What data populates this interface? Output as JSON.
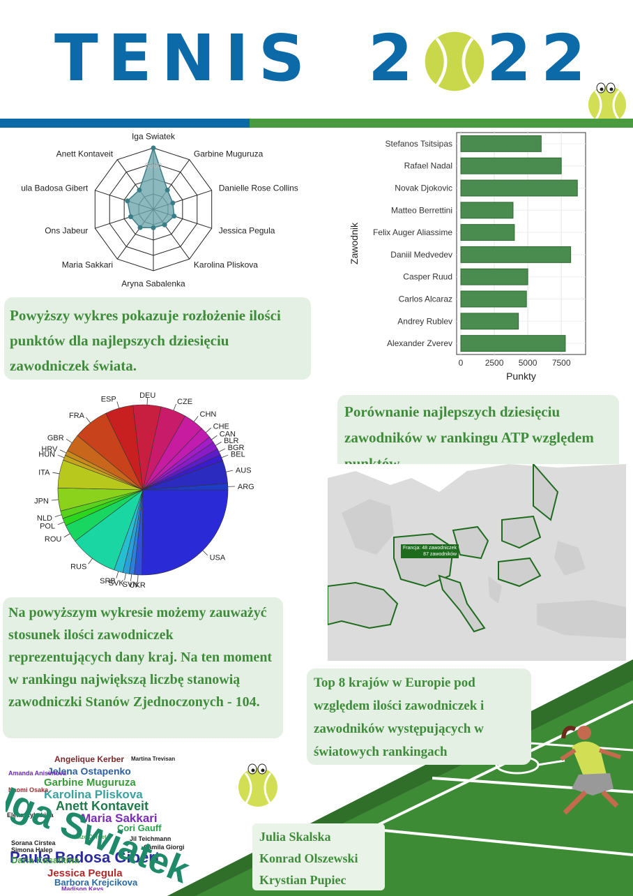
{
  "header": {
    "title_left": "TENIS",
    "title_right": "2022"
  },
  "radar": {
    "players": [
      "Iga Swiatek",
      "Garbine Muguruza",
      "Danielle Rose Collins",
      "Jessica Pegula",
      "Karolina Pliskova",
      "Aryna Sabalenka",
      "Maria Sakkari",
      "Ons Jabeur",
      "Paula Badosa Gibert",
      "Anett Kontaveit"
    ],
    "values": [
      9000,
      3500,
      3000,
      3200,
      2800,
      2700,
      3300,
      3500,
      4000,
      3500
    ],
    "max": 9000,
    "tick_label": "6000",
    "fill": "#6fa7ad"
  },
  "note_radar": "Powyższy wykres pokazuje rozłożenie ilości punktów dla najlepszych dziesięciu zawodniczek świata.",
  "chart_data": [
    {
      "type": "bar",
      "orientation": "horizontal",
      "categories": [
        "Stefanos Tsitsipas",
        "Rafael Nadal",
        "Novak Djokovic",
        "Matteo Berrettini",
        "Felix Auger Aliassime",
        "Daniil Medvedev",
        "Casper Ruud",
        "Carlos Alcaraz",
        "Andrey Rublev",
        "Alexander Zverev"
      ],
      "values": [
        6000,
        7500,
        8700,
        3900,
        4000,
        8200,
        5000,
        4900,
        4300,
        7800
      ],
      "xlabel": "Punkty",
      "ylabel": "Zawodnik",
      "xlim": [
        0,
        9000
      ],
      "xticks": [
        "0",
        "2500",
        "5000",
        "7500"
      ],
      "xtick_values": [
        0,
        2500,
        5000,
        7500
      ],
      "color": "#4a8c4f",
      "grid": true
    },
    {
      "type": "pie",
      "labels": [
        "USA",
        "UKR",
        "SVN",
        "SVK",
        "SRB",
        "RUS",
        "ROU",
        "POL",
        "NLD",
        "JPN",
        "ITA",
        "HUN",
        "HRV",
        "GBR",
        "FRA",
        "ESP",
        "DEU",
        "CZE",
        "CHN",
        "CHE",
        "CAN",
        "BLR",
        "BGR",
        "BEL",
        "AUS",
        "ARG"
      ],
      "values": [
        104,
        6,
        4,
        5,
        7,
        38,
        14,
        6,
        6,
        18,
        22,
        4,
        4,
        14,
        28,
        22,
        22,
        20,
        16,
        9,
        5,
        6,
        5,
        5,
        18,
        5
      ],
      "colors": [
        "#2a2ad6",
        "#3150d6",
        "#2e7fd6",
        "#2aa0d6",
        "#25bfd0",
        "#19d6a3",
        "#19d660",
        "#58d21c",
        "#8ad21c",
        "#b9c81c",
        "#c8a61c",
        "#c98a1c",
        "#c8661c",
        "#c8431c",
        "#c82020",
        "#c81f40",
        "#c81c6a",
        "#c01cb0",
        "#a21cc8",
        "#5d1cc8",
        "#3a1ccd"
      ],
      "label_order_note": ""
    }
  ],
  "note_atp": "Porównanie najlepszych dziesięciu zawodników w rankingu ATP względem punktów.",
  "note_pie": "Na powyższym wykresie możemy zauważyć stosunek ilości zawodniczek reprezentujących dany kraj. Na ten moment w rankingu największą liczbę stanowią zawodniczki Stanów Zjednoczonych - 104.",
  "map": {
    "tooltip_line1": "Francja: 48 zawodniczek",
    "tooltip_line2": "87 zawodników"
  },
  "note_map": "Top 8 krajów w Europie pod względem ilości zawodniczek i zawodników występujących w światowych rankingach",
  "wordcloud": {
    "big": "Iga Swiatek",
    "words": [
      "Angelique Kerber",
      "Jelena Ostapenko",
      "Garbine Muguruza",
      "Karolina Pliskova",
      "Anett Kontaveit",
      "Maria Sakkari",
      "Paula Badosa Gibert",
      "Cori Gauff",
      "Elena Rybakina",
      "Jil Teichmann",
      "Camila Giorgi",
      "Simona Halep",
      "Daria Kasatkina",
      "Jessica Pegula",
      "Barbora Krejcikova",
      "Madison Keys",
      "Amanda Anisimova",
      "Martina Trevisan",
      "Naomi Osaka",
      "Sorana Cirstea",
      "Alize Cornet",
      "Elina Svitolina"
    ]
  },
  "authors": [
    "Julia Skalska",
    "Konrad Olszewski",
    "Krystian Pupiec"
  ],
  "colors": {
    "brand_blue": "#0d6aa8",
    "brand_green": "#4a9a3f",
    "court": "#3d8c35",
    "note_bg": "#e5f0e4",
    "note_text": "#3e8c3a",
    "ball": "#c8d84a"
  }
}
